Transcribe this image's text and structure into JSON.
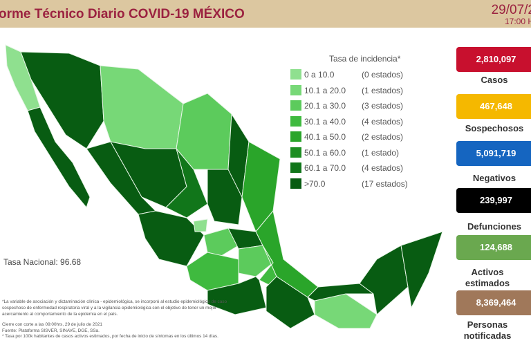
{
  "header": {
    "title": "orme Técnico Diario COVID-19 MÉXICO",
    "date": "29/07/2",
    "time": "17:00 H"
  },
  "legend": {
    "title": "Tasa de incidencia*",
    "rows": [
      {
        "range": "0   a  10.0",
        "count": "(0 estados)",
        "color": "#8fe08f"
      },
      {
        "range": "10.1 a  20.0",
        "count": "(1 estados)",
        "color": "#77d877"
      },
      {
        "range": "20.1 a  30.0",
        "count": "(3 estados)",
        "color": "#5ccb5c"
      },
      {
        "range": "30.1 a  40.0",
        "count": "(4 estados)",
        "color": "#3fba3f"
      },
      {
        "range": "40.1 a  50.0",
        "count": "(2 estados)",
        "color": "#2aa52a"
      },
      {
        "range": "50.1 a  60.0",
        "count": "(1 estado)",
        "color": "#1d8e22"
      },
      {
        "range": "60.1 a  70.0",
        "count": "(4 estados)",
        "color": "#11761a"
      },
      {
        "range": ">70.0",
        "count": "(17 estados)",
        "color": "#085c12"
      }
    ]
  },
  "tasa_nacional": "Tasa Nacional: 96.68",
  "notes": {
    "note1": "*La variable de asociación y dictaminación clínica - epidemiológica, se incorporó al estudio epidemiológico de caso sospechoso de enfermedad respiratoria viral y a la vigilancia epidemiológica con el objetivo de tener un mejor acercamiento al comportamiento de la epidemia en el país.",
    "cierre": "Cierre con corte a las 09:00hrs, 29 de julio de 2021",
    "fuente": "Fuente: Plataforma SISVER, SINAVE, DGE, SSa.",
    "tasa": "* Tasa por 100k habitantes de casos activos estimados, por fecha de inicio de síntomas en los últimos 14 días."
  },
  "stats": [
    {
      "value": "2,810,097",
      "label": "Casos",
      "color": "#c8102e"
    },
    {
      "value": "467,648",
      "label": "Sospechosos",
      "color": "#f5b800"
    },
    {
      "value": "5,091,719",
      "label": "Negativos",
      "color": "#1565c0"
    },
    {
      "value": "239,997",
      "label": "Defunciones",
      "color": "#000000"
    },
    {
      "value": "124,688",
      "label": "Activos estimados",
      "color": "#6aa84f"
    },
    {
      "value": "8,369,464",
      "label": "Personas notificadas",
      "color": "#a0785a"
    }
  ]
}
